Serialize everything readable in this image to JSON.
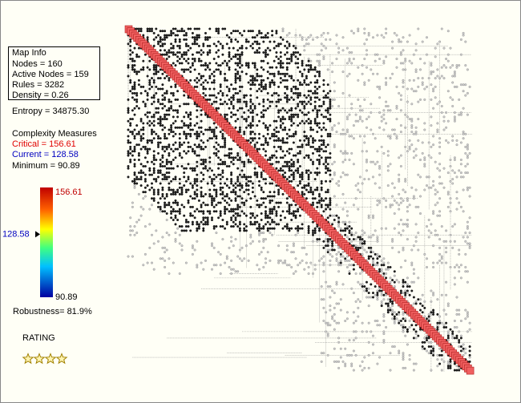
{
  "map_info": {
    "title": "Map Info",
    "lines": [
      "Nodes = 160",
      "Active Nodes = 159",
      "Rules = 3282",
      "Density = 0.26"
    ]
  },
  "entropy": "Entropy = 34875.30",
  "complexity": {
    "title": "Complexity Measures",
    "critical": "Critical = 156.61",
    "current": "Current = 128.58",
    "minimum": "Minimum = 90.89"
  },
  "colorbar": {
    "max": 156.61,
    "min": 90.89,
    "current": 128.58
  },
  "robustness": "Robustness= 81.9%",
  "rating": {
    "title": "RATING",
    "stars": 4
  }
}
